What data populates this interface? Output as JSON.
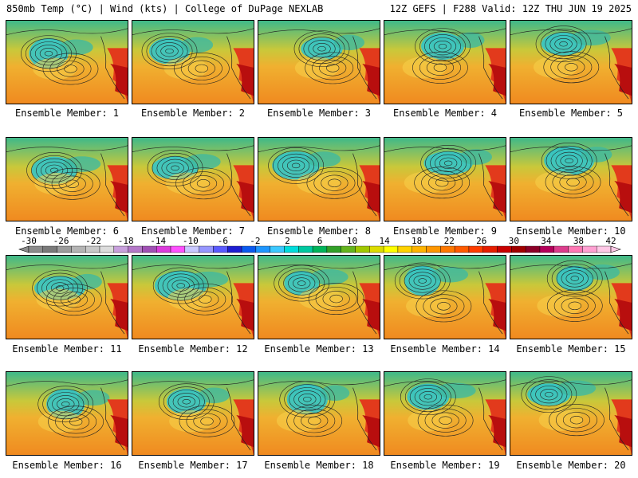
{
  "header": {
    "left": "850mb Temp (°C) | Wind (kts) | College of DuPage NEXLAB",
    "right": "12Z GEFS | F288 Valid: 12Z THU JUN 19 2025"
  },
  "members": [
    {
      "label": "Ensemble Member: 1"
    },
    {
      "label": "Ensemble Member: 2"
    },
    {
      "label": "Ensemble Member: 3"
    },
    {
      "label": "Ensemble Member: 4"
    },
    {
      "label": "Ensemble Member: 5"
    },
    {
      "label": "Ensemble Member: 6"
    },
    {
      "label": "Ensemble Member: 7"
    },
    {
      "label": "Ensemble Member: 8"
    },
    {
      "label": "Ensemble Member: 9"
    },
    {
      "label": "Ensemble Member: 10"
    },
    {
      "label": "Ensemble Member: 11"
    },
    {
      "label": "Ensemble Member: 12"
    },
    {
      "label": "Ensemble Member: 13"
    },
    {
      "label": "Ensemble Member: 14"
    },
    {
      "label": "Ensemble Member: 15"
    },
    {
      "label": "Ensemble Member: 16"
    },
    {
      "label": "Ensemble Member: 17"
    },
    {
      "label": "Ensemble Member: 18"
    },
    {
      "label": "Ensemble Member: 19"
    },
    {
      "label": "Ensemble Member: 20"
    }
  ],
  "colorbar": {
    "labels": [
      "-30",
      "-26",
      "-22",
      "-18",
      "-14",
      "-10",
      "-6",
      "-2",
      "2",
      "6",
      "10",
      "14",
      "18",
      "22",
      "26",
      "30",
      "34",
      "38",
      "42"
    ],
    "colors": [
      "#8c8c8c",
      "#7a7a7a",
      "#9c9c9c",
      "#b4b4b4",
      "#c8c8c8",
      "#dcdcdc",
      "#c8a0dc",
      "#b478c8",
      "#a050b4",
      "#dc3cdc",
      "#ff50ff",
      "#c8c8ff",
      "#9696ff",
      "#5a5aff",
      "#1e1ed2",
      "#0a5af0",
      "#1e96ff",
      "#3cc8ff",
      "#00dcdc",
      "#00c8a0",
      "#00b45a",
      "#32a028",
      "#64b41e",
      "#a0c800",
      "#dcdc00",
      "#ffff00",
      "#ffd200",
      "#ffb400",
      "#ff9600",
      "#ff7800",
      "#ff5a00",
      "#ff3c00",
      "#e61e00",
      "#c80000",
      "#a00000",
      "#8c0028",
      "#b4005a",
      "#dc3c8c",
      "#ff78b4",
      "#ffa0d2",
      "#ffc8e6"
    ]
  }
}
